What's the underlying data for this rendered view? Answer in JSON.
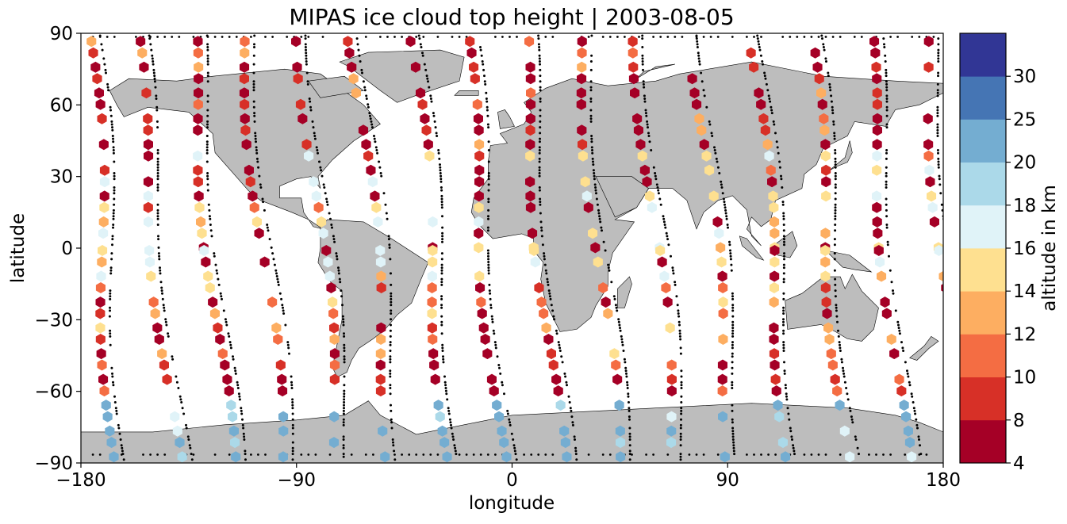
{
  "chart_data": {
    "type": "scatter",
    "title": "MIPAS ice cloud top height | 2003-08-05",
    "xlabel": "longitude",
    "ylabel": "latitude",
    "xlim": [
      -180,
      180
    ],
    "ylim": [
      -90,
      90
    ],
    "x_ticks": [
      "−180",
      "−90",
      "0",
      "90",
      "180"
    ],
    "y_ticks": [
      "90",
      "60",
      "30",
      "0",
      "−30",
      "−60",
      "−90"
    ],
    "x_tick_values": [
      -180,
      -90,
      0,
      90,
      180
    ],
    "y_tick_values": [
      90,
      60,
      30,
      0,
      -30,
      -60,
      -90
    ],
    "background_map": "world coastline, land filled gray",
    "land_color": "#bdbdbd",
    "track_marker": "black dots (orbit tracks without cloud detection)",
    "colorbar": {
      "label": "altitude in km",
      "bounds": [
        4,
        8,
        10,
        12,
        14,
        16,
        18,
        20,
        25,
        30
      ],
      "tick_labels": [
        "4",
        "8",
        "10",
        "12",
        "14",
        "16",
        "18",
        "20",
        "25",
        "30"
      ],
      "colors": [
        "#a50026",
        "#d73027",
        "#f46d43",
        "#fdae61",
        "#fee090",
        "#e0f3f8",
        "#abd9e9",
        "#74add1",
        "#4575b4",
        "#313695"
      ]
    },
    "orbits": [
      {
        "lon_north": -176,
        "lon_south": -166
      },
      {
        "lon_north": -158,
        "lon_south": -140
      },
      {
        "lon_north": -134,
        "lon_south": -118
      },
      {
        "lon_north": -112,
        "lon_south": -96
      },
      {
        "lon_north": -88,
        "lon_south": -72
      },
      {
        "lon_north": -66,
        "lon_south": -50
      },
      {
        "lon_north": -42,
        "lon_south": -26
      },
      {
        "lon_north": -20,
        "lon_south": -4
      },
      {
        "lon_north": 4,
        "lon_south": 20
      },
      {
        "lon_north": 28,
        "lon_south": 44
      },
      {
        "lon_north": 52,
        "lon_south": 68
      },
      {
        "lon_north": 76,
        "lon_south": 92
      },
      {
        "lon_north": 100,
        "lon_south": 116
      },
      {
        "lon_north": 124,
        "lon_south": 140
      },
      {
        "lon_north": 148,
        "lon_south": 164
      },
      {
        "lon_north": 172,
        "lon_south": 188
      }
    ],
    "sample_points": [
      {
        "lon": -170,
        "lat": 55,
        "alt": 6
      },
      {
        "lon": -168,
        "lat": 10,
        "alt": 14
      },
      {
        "lon": -162,
        "lat": -50,
        "alt": 6
      },
      {
        "lon": -140,
        "lat": 40,
        "alt": 6
      },
      {
        "lon": -130,
        "lat": 5,
        "alt": 15
      },
      {
        "lon": -110,
        "lat": 60,
        "alt": 6
      },
      {
        "lon": -95,
        "lat": 20,
        "alt": 15
      },
      {
        "lon": -85,
        "lat": -40,
        "alt": 10
      },
      {
        "lon": -75,
        "lat": 70,
        "alt": 6
      },
      {
        "lon": -60,
        "lat": 5,
        "alt": 12
      },
      {
        "lon": -40,
        "lat": 20,
        "alt": 7
      },
      {
        "lon": 10,
        "lat": 10,
        "alt": 15
      },
      {
        "lon": 40,
        "lat": 50,
        "alt": 9
      },
      {
        "lon": 60,
        "lat": 10,
        "alt": 13
      },
      {
        "lon": 90,
        "lat": 20,
        "alt": 17
      },
      {
        "lon": 120,
        "lat": 70,
        "alt": 10
      },
      {
        "lon": 150,
        "lat": -40,
        "alt": 6
      },
      {
        "lon": 170,
        "lat": 40,
        "alt": 12
      },
      {
        "lon": -100,
        "lat": -80,
        "alt": 22
      },
      {
        "lon": 60,
        "lat": -80,
        "alt": 23
      }
    ]
  }
}
